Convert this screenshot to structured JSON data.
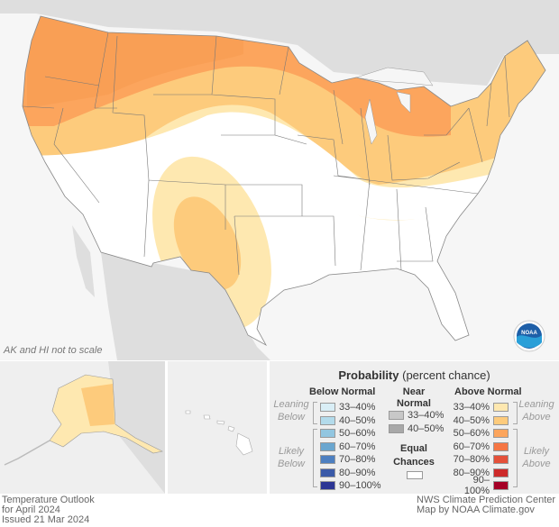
{
  "map_note": "AK and HI not to scale",
  "logo_text": "NOAA",
  "legend": {
    "title": "Probability",
    "subtitle": "(percent chance)",
    "below_header": "Below Normal",
    "near_header": [
      "Near",
      "Normal"
    ],
    "above_header": "Above Normal",
    "leaning_below": [
      "Leaning",
      "Below"
    ],
    "likely_below": [
      "Likely",
      "Below"
    ],
    "leaning_above": [
      "Leaning",
      "Above"
    ],
    "likely_above": [
      "Likely",
      "Above"
    ],
    "equal_chances": [
      "Equal",
      "Chances"
    ],
    "below": [
      {
        "label": "33–40%",
        "color": "#d9eef6"
      },
      {
        "label": "40–50%",
        "color": "#b3dbeb"
      },
      {
        "label": "50–60%",
        "color": "#92c6e0"
      },
      {
        "label": "60–70%",
        "color": "#6aa6cf"
      },
      {
        "label": "70–80%",
        "color": "#4d7fc0"
      },
      {
        "label": "80–90%",
        "color": "#3a5aa8"
      },
      {
        "label": "90–100%",
        "color": "#2c3594"
      }
    ],
    "near": [
      {
        "label": "33–40%",
        "color": "#c8c8c8"
      },
      {
        "label": "40–50%",
        "color": "#a8a8a8"
      }
    ],
    "above": [
      {
        "label": "33–40%",
        "color": "#fee8b0"
      },
      {
        "label": "40–50%",
        "color": "#fdcb7c"
      },
      {
        "label": "50–60%",
        "color": "#fca55d"
      },
      {
        "label": "60–70%",
        "color": "#f57644"
      },
      {
        "label": "70–80%",
        "color": "#e4513a"
      },
      {
        "label": "80–90%",
        "color": "#cd2a2a"
      },
      {
        "label": "90–100%",
        "color": "#a50026"
      }
    ],
    "equal_color": "#ffffff"
  },
  "footer": {
    "left": [
      "Temperature Outlook",
      "for April 2024",
      "Issued 21 Mar 2024"
    ],
    "right": [
      "NWS Climate Prediction Center",
      "Map by NOAA Climate.gov"
    ]
  }
}
